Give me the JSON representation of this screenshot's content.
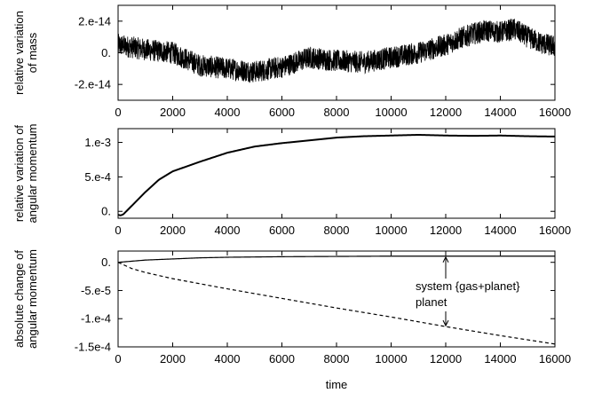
{
  "chart_data": [
    {
      "type": "line",
      "ylabel": [
        "relative variation",
        "of mass"
      ],
      "xlabel": "",
      "xlim": [
        0,
        16000
      ],
      "ylim": [
        -3e-14,
        3e-14
      ],
      "x_ticks": [
        0,
        2000,
        4000,
        6000,
        8000,
        10000,
        12000,
        14000,
        16000
      ],
      "x_tick_labels": [
        "0",
        "2000",
        "4000",
        "6000",
        "8000",
        "10000",
        "12000",
        "14000",
        "16000"
      ],
      "y_ticks": [
        -2e-14,
        0,
        2e-14
      ],
      "y_tick_labels": [
        "-2.e-14",
        "0.",
        "2.e-14"
      ],
      "series": [
        {
          "style": "noisy-solid",
          "noise_amplitude": 7e-15,
          "x": [
            0,
            1000,
            2000,
            3000,
            4000,
            5000,
            6000,
            7000,
            8000,
            9000,
            10000,
            11000,
            12000,
            12500,
            13000,
            13500,
            14000,
            14500,
            15000,
            15500,
            16000
          ],
          "values": [
            5e-15,
            2e-15,
            0.0,
            -8e-15,
            -1e-14,
            -1.2e-14,
            -9e-15,
            -3e-15,
            -5e-15,
            -6e-15,
            -3e-15,
            0.0,
            5e-15,
            9e-15,
            1.2e-14,
            1.4e-14,
            1.3e-14,
            1.5e-14,
            1e-14,
            6e-15,
            4e-15
          ]
        }
      ]
    },
    {
      "type": "line",
      "ylabel": [
        "relative variation of",
        "angular momentum"
      ],
      "xlabel": "",
      "xlim": [
        0,
        16000
      ],
      "ylim": [
        -0.0001,
        0.0012
      ],
      "x_ticks": [
        0,
        2000,
        4000,
        6000,
        8000,
        10000,
        12000,
        14000,
        16000
      ],
      "x_tick_labels": [
        "0",
        "2000",
        "4000",
        "6000",
        "8000",
        "10000",
        "12000",
        "14000",
        "16000"
      ],
      "y_ticks": [
        0,
        0.0005,
        0.001
      ],
      "y_tick_labels": [
        "0.",
        "5.e-4",
        "1.e-3"
      ],
      "series": [
        {
          "style": "solid",
          "x": [
            0,
            100,
            200,
            300,
            500,
            700,
            1000,
            1500,
            2000,
            3000,
            4000,
            5000,
            6000,
            7000,
            8000,
            9000,
            10000,
            11000,
            12000,
            13000,
            14000,
            15000,
            16000
          ],
          "values": [
            -5e-05,
            -6e-05,
            -4e-05,
            0,
            8e-05,
            0.00016,
            0.00028,
            0.00046,
            0.00058,
            0.00072,
            0.00085,
            0.00094,
            0.00099,
            0.00103,
            0.00107,
            0.00109,
            0.0011,
            0.00111,
            0.0011,
            0.001095,
            0.0011,
            0.00109,
            0.001085
          ]
        }
      ]
    },
    {
      "type": "line",
      "ylabel": [
        "absolute change of",
        "angular momentum"
      ],
      "xlabel": "time",
      "xlim": [
        0,
        16000
      ],
      "ylim": [
        -0.00015,
        2e-05
      ],
      "x_ticks": [
        0,
        2000,
        4000,
        6000,
        8000,
        10000,
        12000,
        14000,
        16000
      ],
      "x_tick_labels": [
        "0",
        "2000",
        "4000",
        "6000",
        "8000",
        "10000",
        "12000",
        "14000",
        "16000"
      ],
      "y_ticks": [
        -0.00015,
        -0.0001,
        -5e-05,
        0
      ],
      "y_tick_labels": [
        "-1.5e-4",
        "-1.e-4",
        "-5.e-5",
        "0."
      ],
      "series": [
        {
          "style": "solid",
          "x": [
            0,
            500,
            1000,
            2000,
            3000,
            4000,
            6000,
            8000,
            10000,
            12000,
            14000,
            16000
          ],
          "values": [
            0,
            2e-06,
            4e-06,
            6e-06,
            8e-06,
            9e-06,
            1e-05,
            1.05e-05,
            1.1e-05,
            1.1e-05,
            1.1e-05,
            1.1e-05
          ]
        },
        {
          "style": "dashed",
          "x": [
            0,
            500,
            1000,
            2000,
            3000,
            4000,
            6000,
            8000,
            10000,
            12000,
            14000,
            16000
          ],
          "values": [
            0,
            -1.1e-05,
            -1.8e-05,
            -2.9e-05,
            -3.8e-05,
            -4.7e-05,
            -6.4e-05,
            -8.1e-05,
            -9.7e-05,
            -0.000114,
            -0.00013,
            -0.000145
          ]
        }
      ],
      "annotations": [
        {
          "text": "system {gas+planet}",
          "arrow_x": 12000,
          "arrow_to_y": 1.1e-05
        },
        {
          "text": "planet",
          "arrow_x": 12000,
          "arrow_to_y": -0.000114
        }
      ]
    }
  ]
}
